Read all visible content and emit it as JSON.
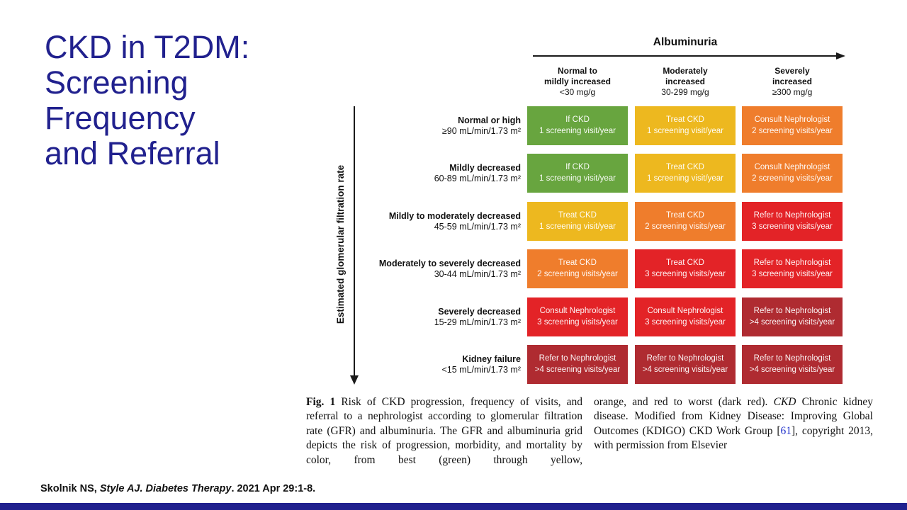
{
  "colors": {
    "navy": "#21218E",
    "green": "#68A53F",
    "yellow": "#EDB81F",
    "orange": "#EF7D2C",
    "red": "#E32327",
    "darkred": "#AF2B31",
    "ref_blue": "#2233CC"
  },
  "title": {
    "lines": [
      "CKD in T2DM:",
      "Screening",
      "Frequency",
      "and Referral"
    ]
  },
  "chart_data": {
    "type": "heatmap",
    "title": "Albuminuria",
    "ylabel": "Estimated glomerular filtration rate",
    "columns": [
      {
        "name": "Normal to mildly increased",
        "range": "<30 mg/g"
      },
      {
        "name": "Moderately increased",
        "range": "30-299 mg/g"
      },
      {
        "name": "Severely increased",
        "range": "≥300 mg/g"
      }
    ],
    "rows": [
      {
        "name": "Normal or high",
        "range": "≥90 mL/min/1.73 m²",
        "cells": [
          {
            "action": "If CKD",
            "frequency": "1 screening visit/year",
            "risk": "green"
          },
          {
            "action": "Treat CKD",
            "frequency": "1 screening visit/year",
            "risk": "yellow"
          },
          {
            "action": "Consult Nephrologist",
            "frequency": "2 screening visits/year",
            "risk": "orange"
          }
        ]
      },
      {
        "name": "Mildly decreased",
        "range": "60-89 mL/min/1.73 m²",
        "cells": [
          {
            "action": "If CKD",
            "frequency": "1 screening visit/year",
            "risk": "green"
          },
          {
            "action": "Treat CKD",
            "frequency": "1 screening visit/year",
            "risk": "yellow"
          },
          {
            "action": "Consult Nephrologist",
            "frequency": "2 screening visits/year",
            "risk": "orange"
          }
        ]
      },
      {
        "name": "Mildly to moderately decreased",
        "range": "45-59 mL/min/1.73 m²",
        "cells": [
          {
            "action": "Treat CKD",
            "frequency": "1 screening visit/year",
            "risk": "yellow"
          },
          {
            "action": "Treat CKD",
            "frequency": "2 screening visits/year",
            "risk": "orange"
          },
          {
            "action": "Refer to Nephrologist",
            "frequency": "3 screening visits/year",
            "risk": "red"
          }
        ]
      },
      {
        "name": "Moderately to severely decreased",
        "range": "30-44 mL/min/1.73 m²",
        "cells": [
          {
            "action": "Treat CKD",
            "frequency": "2 screening visits/year",
            "risk": "orange"
          },
          {
            "action": "Treat CKD",
            "frequency": "3 screening visits/year",
            "risk": "red"
          },
          {
            "action": "Refer to Nephrologist",
            "frequency": "3 screening visits/year",
            "risk": "red"
          }
        ]
      },
      {
        "name": "Severely decreased",
        "range": "15-29 mL/min/1.73 m²",
        "cells": [
          {
            "action": "Consult Nephrologist",
            "frequency": "3 screening visits/year",
            "risk": "red"
          },
          {
            "action": "Consult Nephrologist",
            "frequency": "3 screening visits/year",
            "risk": "red"
          },
          {
            "action": "Refer to Nephrologist",
            "frequency": ">4 screening visits/year",
            "risk": "darkred"
          }
        ]
      },
      {
        "name": "Kidney failure",
        "range": "<15 mL/min/1.73 m²",
        "cells": [
          {
            "action": "Refer to Nephrologist",
            "frequency": ">4 screening visits/year",
            "risk": "darkred"
          },
          {
            "action": "Refer to Nephrologist",
            "frequency": ">4 screening visits/year",
            "risk": "darkred"
          },
          {
            "action": "Refer to Nephrologist",
            "frequency": ">4 screening visits/year",
            "risk": "darkred"
          }
        ]
      }
    ]
  },
  "figure": {
    "albuminuria_axis": {
      "title": "Albuminuria",
      "columns": [
        {
          "name_line1": "Normal to",
          "name_line2": "mildly increased",
          "value": "<30 mg/g"
        },
        {
          "name_line1": "Moderately",
          "name_line2": "increased",
          "value": "30-299 mg/g"
        },
        {
          "name_line1": "Severely",
          "name_line2": "increased",
          "value": "≥300 mg/g"
        }
      ]
    },
    "gfr_axis": {
      "title": "Estimated glomerular filtration rate"
    },
    "rows": [
      {
        "label": "Normal or high",
        "range": "≥90 mL/min/1.73 m²",
        "cells": [
          {
            "line1": "If CKD",
            "line2": "1 screening visit/year",
            "risk": "green"
          },
          {
            "line1": "Treat CKD",
            "line2": "1 screening visit/year",
            "risk": "yellow"
          },
          {
            "line1": "Consult Nephrologist",
            "line2": "2 screening visits/year",
            "risk": "orange"
          }
        ]
      },
      {
        "label": "Mildly decreased",
        "range": "60-89 mL/min/1.73 m²",
        "cells": [
          {
            "line1": "If CKD",
            "line2": "1 screening visit/year",
            "risk": "green"
          },
          {
            "line1": "Treat CKD",
            "line2": "1 screening visit/year",
            "risk": "yellow"
          },
          {
            "line1": "Consult Nephrologist",
            "line2": "2 screening visits/year",
            "risk": "orange"
          }
        ]
      },
      {
        "label": "Mildly to moderately decreased",
        "range": "45-59 mL/min/1.73 m²",
        "cells": [
          {
            "line1": "Treat CKD",
            "line2": "1 screening visit/year",
            "risk": "yellow"
          },
          {
            "line1": "Treat CKD",
            "line2": "2 screening visits/year",
            "risk": "orange"
          },
          {
            "line1": "Refer to Nephrologist",
            "line2": "3 screening visits/year",
            "risk": "red"
          }
        ]
      },
      {
        "label": "Moderately to severely decreased",
        "range": "30-44 mL/min/1.73 m²",
        "cells": [
          {
            "line1": "Treat CKD",
            "line2": "2 screening visits/year",
            "risk": "orange"
          },
          {
            "line1": "Treat CKD",
            "line2": "3 screening visits/year",
            "risk": "red"
          },
          {
            "line1": "Refer to Nephrologist",
            "line2": "3 screening visits/year",
            "risk": "red"
          }
        ]
      },
      {
        "label": "Severely decreased",
        "range": "15-29 mL/min/1.73 m²",
        "cells": [
          {
            "line1": "Consult Nephrologist",
            "line2": "3 screening visits/year",
            "risk": "red"
          },
          {
            "line1": "Consult Nephrologist",
            "line2": "3 screening visits/year",
            "risk": "red"
          },
          {
            "line1": "Refer to Nephrologist",
            "line2": ">4 screening visits/year",
            "risk": "darkred"
          }
        ]
      },
      {
        "label": "Kidney failure",
        "range": "<15 mL/min/1.73 m²",
        "cells": [
          {
            "line1": "Refer to Nephrologist",
            "line2": ">4 screening visits/year",
            "risk": "darkred"
          },
          {
            "line1": "Refer to Nephrologist",
            "line2": ">4 screening visits/year",
            "risk": "darkred"
          },
          {
            "line1": "Refer to Nephrologist",
            "line2": ">4 screening visits/year",
            "risk": "darkred"
          }
        ]
      }
    ]
  },
  "caption": {
    "left": {
      "label": "Fig. 1",
      "text": " Risk of CKD progression, frequency of visits, and referral to a nephrologist according to glomerular filtration rate (GFR) and albuminuria. The GFR and albuminuria grid depicts the risk of progression, morbidity, and mortality by color, from best (green) through yellow,"
    },
    "right": {
      "part1": "orange, and red to worst (dark red). ",
      "abbr": "CKD",
      "part2": " Chronic kidney disease. Modified from Kidney Disease: Improving Global Outcomes (KDIGO) CKD Work Group [",
      "ref": "61",
      "part3": "], copyright 2013, with permission from Elsevier"
    }
  },
  "citation": {
    "authors": "Skolnik NS, ",
    "italic": "Style AJ. Diabetes Therapy",
    "tail": ". 2021 Apr 29:1-8."
  }
}
